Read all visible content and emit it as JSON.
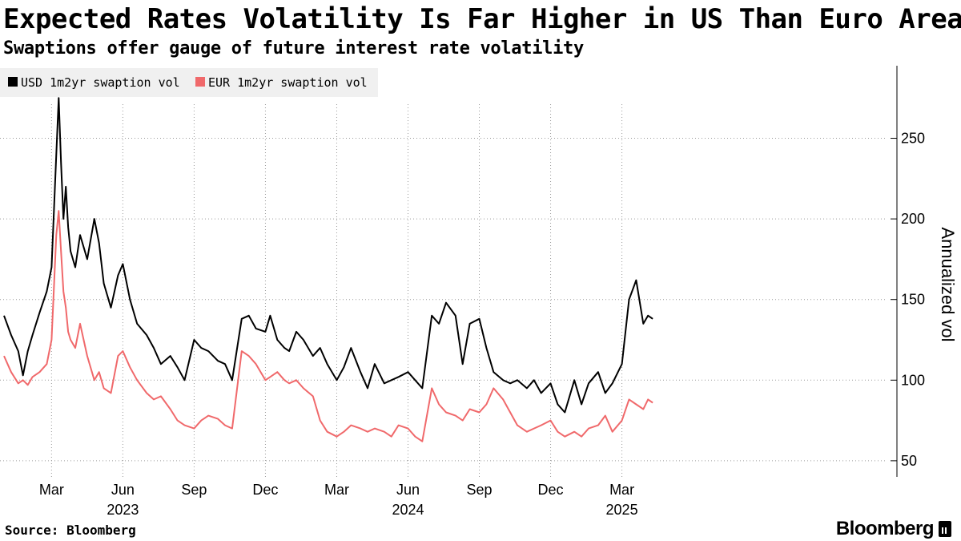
{
  "title": "Expected Rates Volatility Is Far Higher in US Than Euro Area",
  "subtitle": "Swaptions offer gauge of future interest rate volatility",
  "source": "Source: Bloomberg",
  "brand": "Bloomberg",
  "chart_data": {
    "type": "line",
    "title": "Expected Rates Volatility Is Far Higher in US Than Euro Area",
    "subtitle": "Swaptions offer gauge of future interest rate volatility",
    "xlabel": "",
    "ylabel": "Annualized vol",
    "ylim": [
      40,
      295
    ],
    "yticks": [
      50,
      100,
      150,
      200,
      250
    ],
    "xlim": [
      0,
      37
    ],
    "x_unit": "months since Jan 2023",
    "xticks": [
      {
        "label": "Mar",
        "x": 2
      },
      {
        "label": "Jun",
        "x": 5
      },
      {
        "label": "Sep",
        "x": 8
      },
      {
        "label": "Dec",
        "x": 11
      },
      {
        "label": "Mar",
        "x": 14
      },
      {
        "label": "Jun",
        "x": 17
      },
      {
        "label": "Sep",
        "x": 20
      },
      {
        "label": "Dec",
        "x": 23
      },
      {
        "label": "Mar",
        "x": 26
      }
    ],
    "year_labels": [
      {
        "label": "2023",
        "x": 5
      },
      {
        "label": "2024",
        "x": 17
      },
      {
        "label": "2025",
        "x": 26
      }
    ],
    "grid": true,
    "legend_position": "top-left",
    "colors": {
      "usd": "#000000",
      "eur": "#f0696b",
      "grid": "#9a9a9a",
      "legend_bg": "#f0f0f0"
    },
    "series": [
      {
        "name": "USD 1m2yr swaption vol",
        "color": "#000000",
        "x": [
          0,
          0.3,
          0.6,
          0.8,
          1.0,
          1.2,
          1.5,
          1.8,
          2.0,
          2.2,
          2.3,
          2.4,
          2.5,
          2.6,
          2.7,
          2.8,
          3.0,
          3.2,
          3.5,
          3.8,
          4.0,
          4.2,
          4.5,
          4.8,
          5.0,
          5.3,
          5.6,
          6.0,
          6.3,
          6.6,
          7.0,
          7.3,
          7.6,
          8.0,
          8.3,
          8.6,
          9.0,
          9.3,
          9.6,
          10.0,
          10.3,
          10.6,
          11.0,
          11.2,
          11.5,
          11.8,
          12.0,
          12.3,
          12.6,
          13.0,
          13.3,
          13.6,
          14.0,
          14.3,
          14.6,
          15.0,
          15.3,
          15.6,
          16.0,
          16.3,
          16.6,
          17.0,
          17.3,
          17.6,
          18.0,
          18.3,
          18.6,
          19.0,
          19.3,
          19.6,
          20.0,
          20.3,
          20.6,
          21.0,
          21.3,
          21.6,
          22.0,
          22.3,
          22.6,
          23.0,
          23.3,
          23.6,
          24.0,
          24.3,
          24.6,
          25.0,
          25.3,
          25.6,
          26.0,
          26.3,
          26.6,
          26.9,
          27.1,
          27.3
        ],
        "values": [
          140,
          128,
          118,
          103,
          118,
          128,
          142,
          155,
          170,
          240,
          275,
          235,
          200,
          220,
          195,
          180,
          170,
          190,
          175,
          200,
          185,
          160,
          145,
          165,
          172,
          150,
          135,
          128,
          120,
          110,
          115,
          108,
          100,
          125,
          120,
          118,
          112,
          110,
          100,
          138,
          140,
          132,
          130,
          140,
          125,
          120,
          118,
          130,
          125,
          115,
          120,
          110,
          100,
          108,
          120,
          105,
          95,
          110,
          98,
          100,
          102,
          105,
          100,
          95,
          140,
          135,
          148,
          140,
          110,
          135,
          138,
          120,
          105,
          100,
          98,
          100,
          95,
          100,
          92,
          98,
          85,
          80,
          100,
          85,
          98,
          105,
          92,
          98,
          110,
          150,
          162,
          135,
          140,
          138
        ]
      },
      {
        "name": "EUR 1m2yr swaption vol",
        "color": "#f0696b",
        "x": [
          0,
          0.3,
          0.6,
          0.8,
          1.0,
          1.2,
          1.5,
          1.8,
          2.0,
          2.2,
          2.3,
          2.4,
          2.5,
          2.6,
          2.7,
          2.8,
          3.0,
          3.2,
          3.5,
          3.8,
          4.0,
          4.2,
          4.5,
          4.8,
          5.0,
          5.3,
          5.6,
          6.0,
          6.3,
          6.6,
          7.0,
          7.3,
          7.6,
          8.0,
          8.3,
          8.6,
          9.0,
          9.3,
          9.6,
          10.0,
          10.3,
          10.6,
          11.0,
          11.2,
          11.5,
          11.8,
          12.0,
          12.3,
          12.6,
          13.0,
          13.3,
          13.6,
          14.0,
          14.3,
          14.6,
          15.0,
          15.3,
          15.6,
          16.0,
          16.3,
          16.6,
          17.0,
          17.3,
          17.6,
          18.0,
          18.3,
          18.6,
          19.0,
          19.3,
          19.6,
          20.0,
          20.3,
          20.6,
          21.0,
          21.3,
          21.6,
          22.0,
          22.3,
          22.6,
          23.0,
          23.3,
          23.6,
          24.0,
          24.3,
          24.6,
          25.0,
          25.3,
          25.6,
          26.0,
          26.3,
          26.6,
          26.9,
          27.1,
          27.3
        ],
        "values": [
          115,
          105,
          98,
          100,
          97,
          102,
          105,
          110,
          125,
          190,
          205,
          180,
          155,
          145,
          130,
          125,
          120,
          135,
          115,
          100,
          105,
          95,
          92,
          115,
          118,
          108,
          100,
          92,
          88,
          90,
          82,
          75,
          72,
          70,
          75,
          78,
          76,
          72,
          70,
          118,
          115,
          110,
          100,
          102,
          105,
          100,
          98,
          100,
          95,
          90,
          75,
          68,
          65,
          68,
          72,
          70,
          68,
          70,
          68,
          65,
          72,
          70,
          65,
          62,
          95,
          85,
          80,
          78,
          75,
          82,
          80,
          85,
          95,
          88,
          80,
          72,
          68,
          70,
          72,
          75,
          68,
          65,
          68,
          65,
          70,
          72,
          78,
          68,
          75,
          88,
          85,
          82,
          88,
          86
        ]
      }
    ]
  }
}
